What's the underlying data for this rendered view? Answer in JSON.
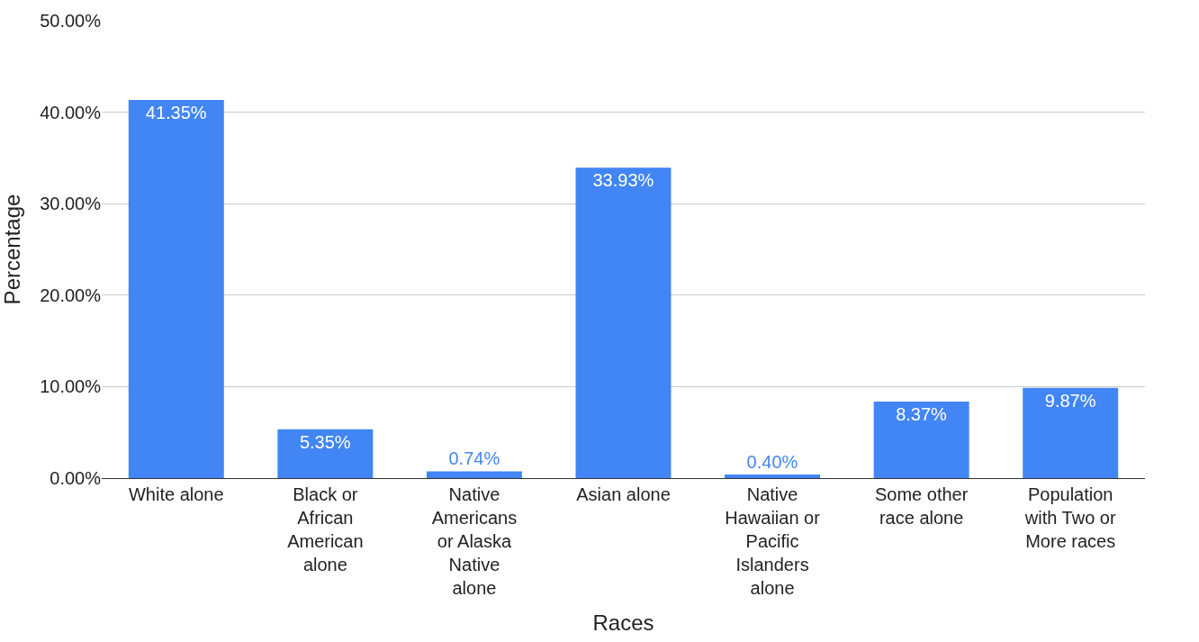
{
  "chart_data": {
    "type": "bar",
    "xlabel": "Races",
    "ylabel": "Percentage",
    "categories": [
      "White alone",
      "Black or African American alone",
      "Native Americans or Alaska Native alone",
      "Asian alone",
      "Native Hawaiian or Pacific Islanders alone",
      "Some other race alone",
      "Population with Two or More races"
    ],
    "values": [
      41.35,
      5.35,
      0.74,
      33.93,
      0.4,
      8.37,
      9.87
    ],
    "value_labels": [
      "41.35%",
      "5.35%",
      "0.74%",
      "33.93%",
      "0.40%",
      "8.37%",
      "9.87%"
    ],
    "color": "#4285f4",
    "ylim": [
      0,
      50
    ],
    "yticks": [
      {
        "value": 0,
        "label": "0.00%"
      },
      {
        "value": 10,
        "label": "10.00%"
      },
      {
        "value": 20,
        "label": "20.00%"
      },
      {
        "value": 30,
        "label": "30.00%"
      },
      {
        "value": 40,
        "label": "40.00%"
      },
      {
        "value": 50,
        "label": "50.00%"
      }
    ],
    "grid": "y",
    "legend": false
  }
}
